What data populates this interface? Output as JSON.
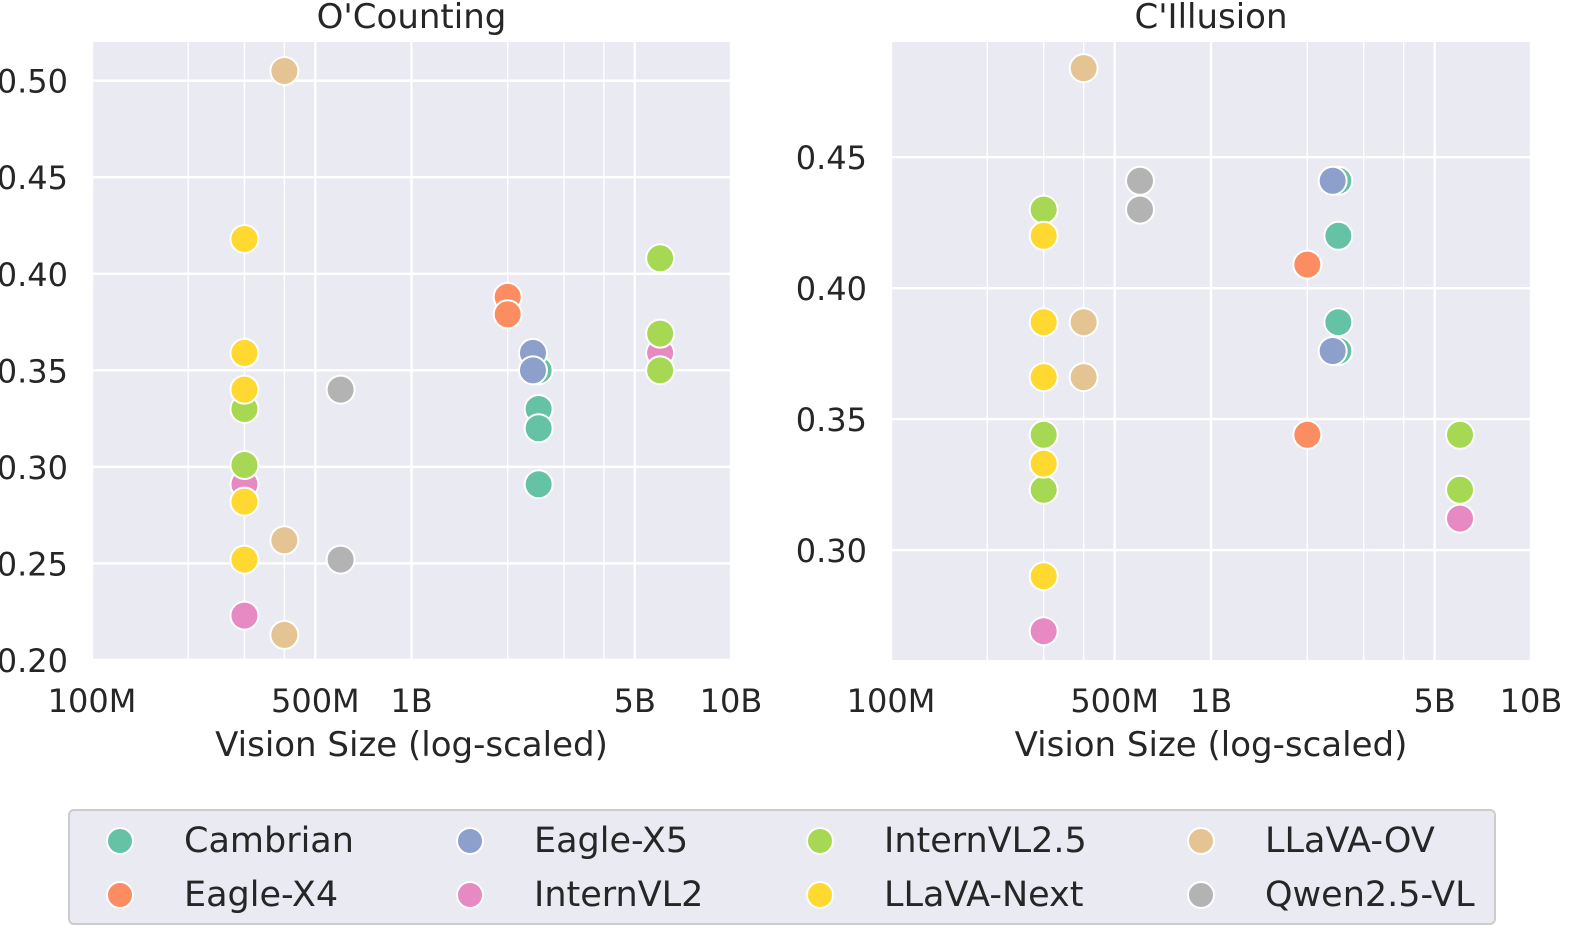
{
  "colors": {
    "Cambrian": "#66c2a5",
    "Eagle-X4": "#fc8d62",
    "Eagle-X5": "#8da0cb",
    "InternVL2": "#e78ac3",
    "InternVL2.5": "#a6d854",
    "LLaVA-Next": "#ffd92f",
    "LLaVA-OV": "#e5c494",
    "Qwen2.5-VL": "#b3b3b3",
    "panel_bg": "#eaeaf2",
    "grid": "#ffffff"
  },
  "legend": {
    "placement": "bottom",
    "entries": [
      "Cambrian",
      "Eagle-X4",
      "Eagle-X5",
      "InternVL2",
      "InternVL2.5",
      "LLaVA-Next",
      "LLaVA-OV",
      "Qwen2.5-VL"
    ]
  },
  "chart_data": [
    {
      "type": "scatter",
      "title": "O'Counting",
      "xlabel": "Vision Size (log-scaled)",
      "ylabel": "",
      "x_scale": "log",
      "xlim": [
        100000000,
        10000000000
      ],
      "ylim": [
        0.2,
        0.52
      ],
      "x_ticks": [
        {
          "value": 100000000,
          "label": "100M"
        },
        {
          "value": 500000000,
          "label": "500M"
        },
        {
          "value": 1000000000,
          "label": "1B"
        },
        {
          "value": 5000000000,
          "label": "5B"
        },
        {
          "value": 10000000000,
          "label": "10B"
        }
      ],
      "y_ticks": [
        0.2,
        0.25,
        0.3,
        0.35,
        0.4,
        0.45,
        0.5
      ],
      "y_tick_labels": [
        "0.20",
        "0.25",
        "0.30",
        "0.35",
        "0.40",
        "0.45",
        "0.50"
      ],
      "grid": true,
      "series": [
        {
          "name": "Cambrian",
          "points": [
            [
              2500000000,
              0.35
            ],
            [
              2500000000,
              0.33
            ],
            [
              2500000000,
              0.32
            ],
            [
              2500000000,
              0.291
            ]
          ]
        },
        {
          "name": "Eagle-X4",
          "points": [
            [
              2000000000,
              0.388
            ],
            [
              2000000000,
              0.379
            ]
          ]
        },
        {
          "name": "Eagle-X5",
          "points": [
            [
              2400000000,
              0.359
            ],
            [
              2400000000,
              0.35
            ]
          ]
        },
        {
          "name": "InternVL2",
          "points": [
            [
              300000000,
              0.291
            ],
            [
              300000000,
              0.223
            ],
            [
              6000000000,
              0.359
            ]
          ]
        },
        {
          "name": "InternVL2.5",
          "points": [
            [
              300000000,
              0.33
            ],
            [
              300000000,
              0.301
            ],
            [
              6000000000,
              0.408
            ],
            [
              6000000000,
              0.369
            ],
            [
              6000000000,
              0.35
            ]
          ]
        },
        {
          "name": "LLaVA-Next",
          "points": [
            [
              300000000,
              0.418
            ],
            [
              300000000,
              0.359
            ],
            [
              300000000,
              0.34
            ],
            [
              300000000,
              0.282
            ],
            [
              300000000,
              0.252
            ]
          ]
        },
        {
          "name": "LLaVA-OV",
          "points": [
            [
              400000000,
              0.505
            ],
            [
              400000000,
              0.262
            ],
            [
              400000000,
              0.213
            ]
          ]
        },
        {
          "name": "Qwen2.5-VL",
          "points": [
            [
              600000000,
              0.34
            ],
            [
              600000000,
              0.252
            ]
          ]
        }
      ]
    },
    {
      "type": "scatter",
      "title": "C'Illusion",
      "xlabel": "Vision Size (log-scaled)",
      "ylabel": "",
      "x_scale": "log",
      "xlim": [
        100000000,
        10000000000
      ],
      "ylim": [
        0.258,
        0.494
      ],
      "x_ticks": [
        {
          "value": 100000000,
          "label": "100M"
        },
        {
          "value": 500000000,
          "label": "500M"
        },
        {
          "value": 1000000000,
          "label": "1B"
        },
        {
          "value": 5000000000,
          "label": "5B"
        },
        {
          "value": 10000000000,
          "label": "10B"
        }
      ],
      "y_ticks": [
        0.3,
        0.35,
        0.4,
        0.45
      ],
      "y_tick_labels": [
        "0.30",
        "0.35",
        "0.40",
        "0.45"
      ],
      "grid": true,
      "series": [
        {
          "name": "Cambrian",
          "points": [
            [
              2500000000,
              0.441
            ],
            [
              2500000000,
              0.42
            ],
            [
              2500000000,
              0.387
            ],
            [
              2500000000,
              0.376
            ]
          ]
        },
        {
          "name": "Eagle-X4",
          "points": [
            [
              2000000000,
              0.409
            ],
            [
              2000000000,
              0.344
            ]
          ]
        },
        {
          "name": "Eagle-X5",
          "points": [
            [
              2400000000,
              0.441
            ],
            [
              2400000000,
              0.376
            ]
          ]
        },
        {
          "name": "InternVL2",
          "points": [
            [
              300000000,
              0.269
            ],
            [
              6000000000,
              0.312
            ]
          ]
        },
        {
          "name": "InternVL2.5",
          "points": [
            [
              300000000,
              0.43
            ],
            [
              300000000,
              0.344
            ],
            [
              300000000,
              0.323
            ],
            [
              6000000000,
              0.344
            ],
            [
              6000000000,
              0.323
            ]
          ]
        },
        {
          "name": "LLaVA-Next",
          "points": [
            [
              300000000,
              0.42
            ],
            [
              300000000,
              0.387
            ],
            [
              300000000,
              0.366
            ],
            [
              300000000,
              0.333
            ],
            [
              300000000,
              0.29
            ]
          ]
        },
        {
          "name": "LLaVA-OV",
          "points": [
            [
              400000000,
              0.484
            ],
            [
              400000000,
              0.387
            ],
            [
              400000000,
              0.366
            ]
          ]
        },
        {
          "name": "Qwen2.5-VL",
          "points": [
            [
              600000000,
              0.441
            ],
            [
              600000000,
              0.43
            ]
          ]
        }
      ]
    }
  ]
}
